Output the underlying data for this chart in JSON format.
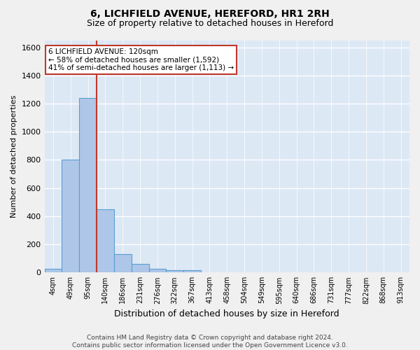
{
  "title1": "6, LICHFIELD AVENUE, HEREFORD, HR1 2RH",
  "title2": "Size of property relative to detached houses in Hereford",
  "xlabel": "Distribution of detached houses by size in Hereford",
  "ylabel": "Number of detached properties",
  "bar_labels": [
    "4sqm",
    "49sqm",
    "95sqm",
    "140sqm",
    "186sqm",
    "231sqm",
    "276sqm",
    "322sqm",
    "367sqm",
    "413sqm",
    "458sqm",
    "504sqm",
    "549sqm",
    "595sqm",
    "640sqm",
    "686sqm",
    "731sqm",
    "777sqm",
    "822sqm",
    "868sqm",
    "913sqm"
  ],
  "bar_heights": [
    25,
    800,
    1240,
    450,
    130,
    60,
    25,
    15,
    15,
    0,
    0,
    0,
    0,
    0,
    0,
    0,
    0,
    0,
    0,
    0,
    0
  ],
  "bar_color": "#aec6e8",
  "bar_edge_color": "#5a9fd4",
  "ylim": [
    0,
    1650
  ],
  "yticks": [
    0,
    200,
    400,
    600,
    800,
    1000,
    1200,
    1400,
    1600
  ],
  "vline_x": 2.5,
  "vline_color": "#c0392b",
  "annotation_text": "6 LICHFIELD AVENUE: 120sqm\n← 58% of detached houses are smaller (1,592)\n41% of semi-detached houses are larger (1,113) →",
  "annotation_box_color": "#ffffff",
  "annotation_box_edge": "#c0392b",
  "background_color": "#dde8f5",
  "grid_color": "#ffffff",
  "footer": "Contains HM Land Registry data © Crown copyright and database right 2024.\nContains public sector information licensed under the Open Government Licence v3.0."
}
